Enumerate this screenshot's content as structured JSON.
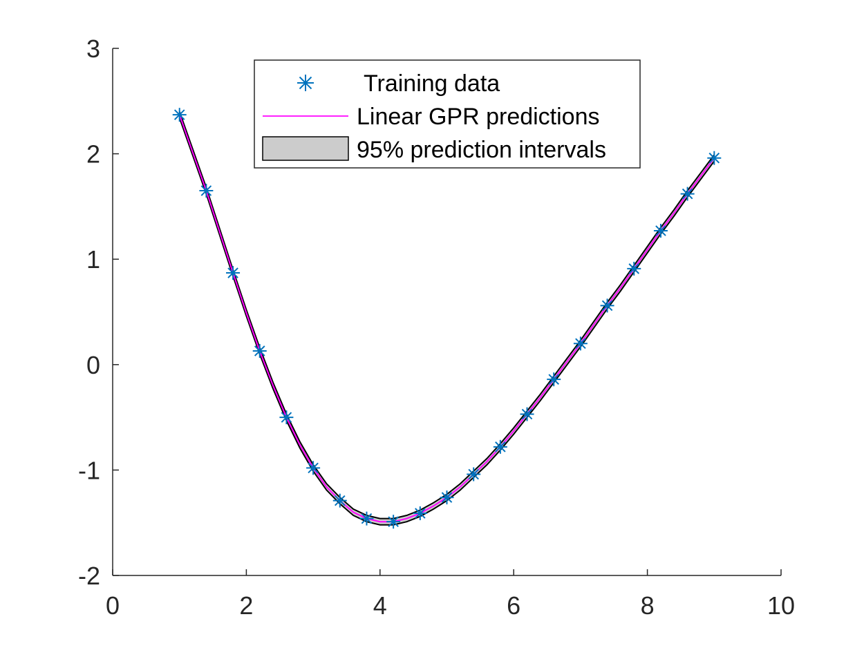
{
  "chart_data": {
    "type": "line",
    "title": "",
    "xlabel": "",
    "ylabel": "",
    "xlim": [
      0,
      10
    ],
    "ylim": [
      -2,
      3
    ],
    "xticks": [
      0,
      2,
      4,
      6,
      8,
      10
    ],
    "yticks": [
      -2,
      -1,
      0,
      1,
      2,
      3
    ],
    "xtick_labels": [
      "0",
      "2",
      "4",
      "6",
      "8",
      "10"
    ],
    "ytick_labels": [
      "-2",
      "-1",
      "0",
      "1",
      "2",
      "3"
    ],
    "grid": false,
    "legend_position": "top-center",
    "series": [
      {
        "name": "Training data",
        "kind": "scatter",
        "marker": "asterisk",
        "color": "#0072BD",
        "x": [
          1.0,
          1.4,
          1.8,
          2.2,
          2.6,
          3.0,
          3.4,
          3.8,
          4.2,
          4.6,
          5.0,
          5.4,
          5.8,
          6.2,
          6.6,
          7.0,
          7.4,
          7.8,
          8.2,
          8.6,
          9.0
        ],
        "y": [
          2.37,
          1.65,
          0.87,
          0.13,
          -0.5,
          -0.98,
          -1.29,
          -1.46,
          -1.49,
          -1.41,
          -1.26,
          -1.04,
          -0.78,
          -0.47,
          -0.14,
          0.2,
          0.56,
          0.91,
          1.27,
          1.62,
          1.96
        ]
      },
      {
        "name": "Linear GPR predictions",
        "kind": "line",
        "color": "#FF00FF",
        "x": [
          1.0,
          1.2,
          1.4,
          1.6,
          1.8,
          2.0,
          2.2,
          2.4,
          2.6,
          2.8,
          3.0,
          3.2,
          3.4,
          3.6,
          3.8,
          4.0,
          4.2,
          4.4,
          4.6,
          4.8,
          5.0,
          5.2,
          5.4,
          5.6,
          5.8,
          6.0,
          6.2,
          6.4,
          6.6,
          6.8,
          7.0,
          7.2,
          7.4,
          7.6,
          7.8,
          8.0,
          8.2,
          8.4,
          8.6,
          8.8,
          9.0
        ],
        "y": [
          2.37,
          2.01,
          1.65,
          1.26,
          0.87,
          0.49,
          0.13,
          -0.2,
          -0.5,
          -0.76,
          -0.98,
          -1.16,
          -1.29,
          -1.4,
          -1.46,
          -1.49,
          -1.49,
          -1.46,
          -1.41,
          -1.34,
          -1.26,
          -1.16,
          -1.04,
          -0.92,
          -0.78,
          -0.63,
          -0.47,
          -0.31,
          -0.14,
          0.03,
          0.2,
          0.38,
          0.56,
          0.73,
          0.91,
          1.09,
          1.27,
          1.44,
          1.62,
          1.79,
          1.96
        ]
      },
      {
        "name": "95% prediction intervals",
        "kind": "band",
        "fill": "#CCCCCC",
        "edge": "#000000",
        "halfwidth": 0.03
      }
    ]
  }
}
